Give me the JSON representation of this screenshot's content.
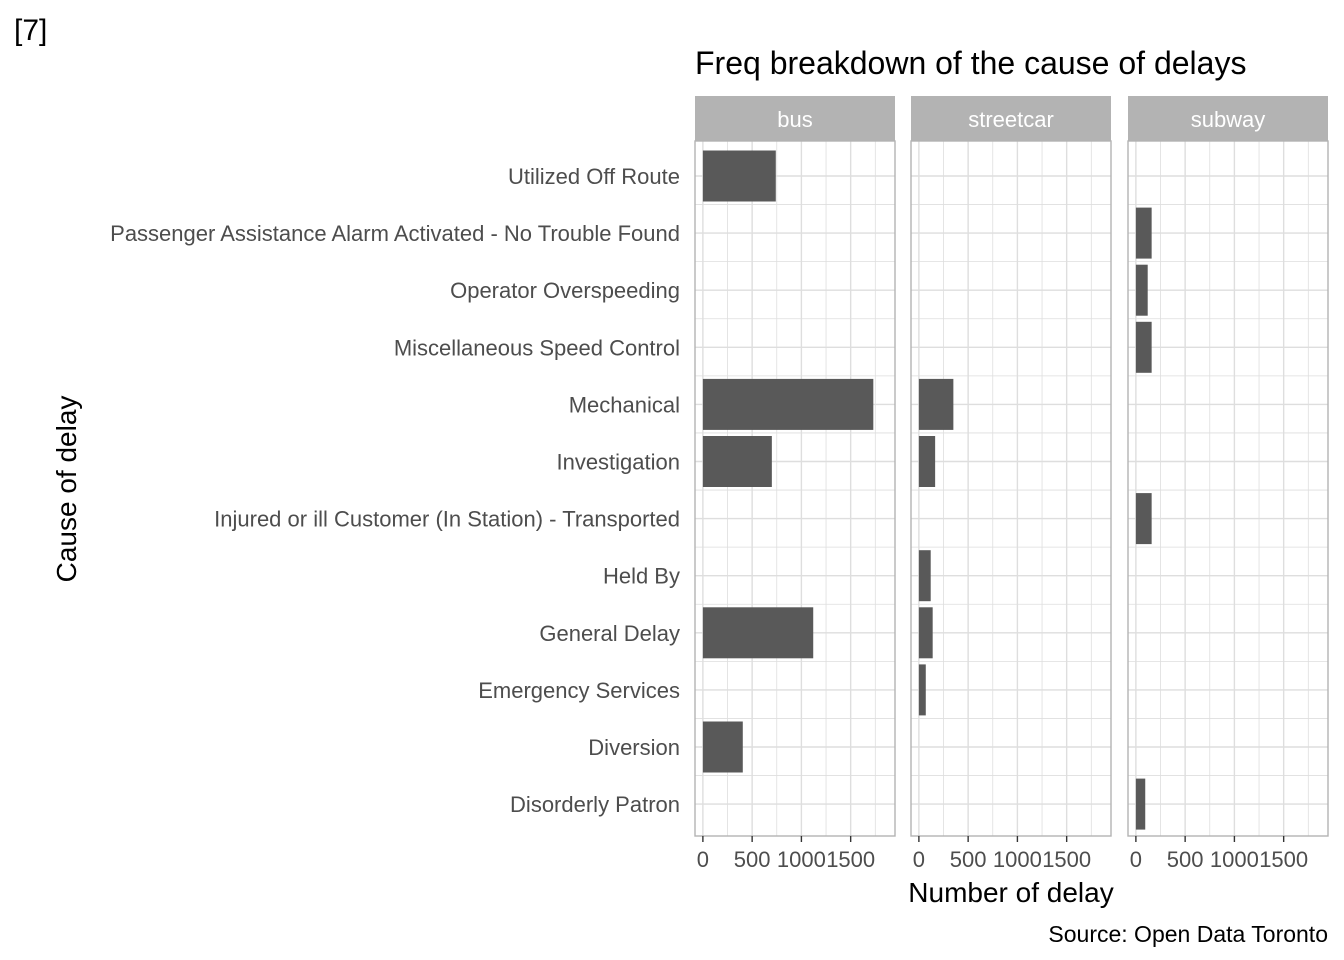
{
  "cell_label": "[7]",
  "chart_data": {
    "type": "bar",
    "orientation": "horizontal",
    "title": "Freq breakdown of the cause of delays",
    "caption": "Source: Open Data Toronto",
    "xlabel": "Number of delay",
    "ylabel": "Cause of delay",
    "xlim": [
      -80,
      1950
    ],
    "xticks": [
      0,
      500,
      1000,
      1500
    ],
    "xtick_labels": [
      "0",
      "500",
      "1000",
      "1500"
    ],
    "grid": true,
    "categories": [
      "Utilized Off Route",
      "Passenger Assistance Alarm Activated - No Trouble Found",
      "Operator Overspeeding",
      "Miscellaneous Speed Control",
      "Mechanical",
      "Investigation",
      "Injured or ill Customer (In Station) - Transported",
      "Held By",
      "General Delay",
      "Emergency Services",
      "Diversion",
      "Disorderly Patron"
    ],
    "facets": [
      {
        "name": "bus",
        "values": [
          740,
          0,
          0,
          0,
          1730,
          700,
          0,
          0,
          1120,
          0,
          405,
          0
        ]
      },
      {
        "name": "streetcar",
        "values": [
          0,
          0,
          0,
          0,
          350,
          165,
          0,
          120,
          140,
          70,
          0,
          0
        ]
      },
      {
        "name": "subway",
        "values": [
          0,
          160,
          120,
          160,
          0,
          0,
          160,
          0,
          0,
          0,
          0,
          95
        ]
      }
    ],
    "colors": {
      "bar": "#595959",
      "strip": "#b3b3b3",
      "strip_text": "#ffffff",
      "grid": "#dedede",
      "panel_border": "#b3b3b3",
      "tick_text": "#4d4d4d"
    }
  }
}
